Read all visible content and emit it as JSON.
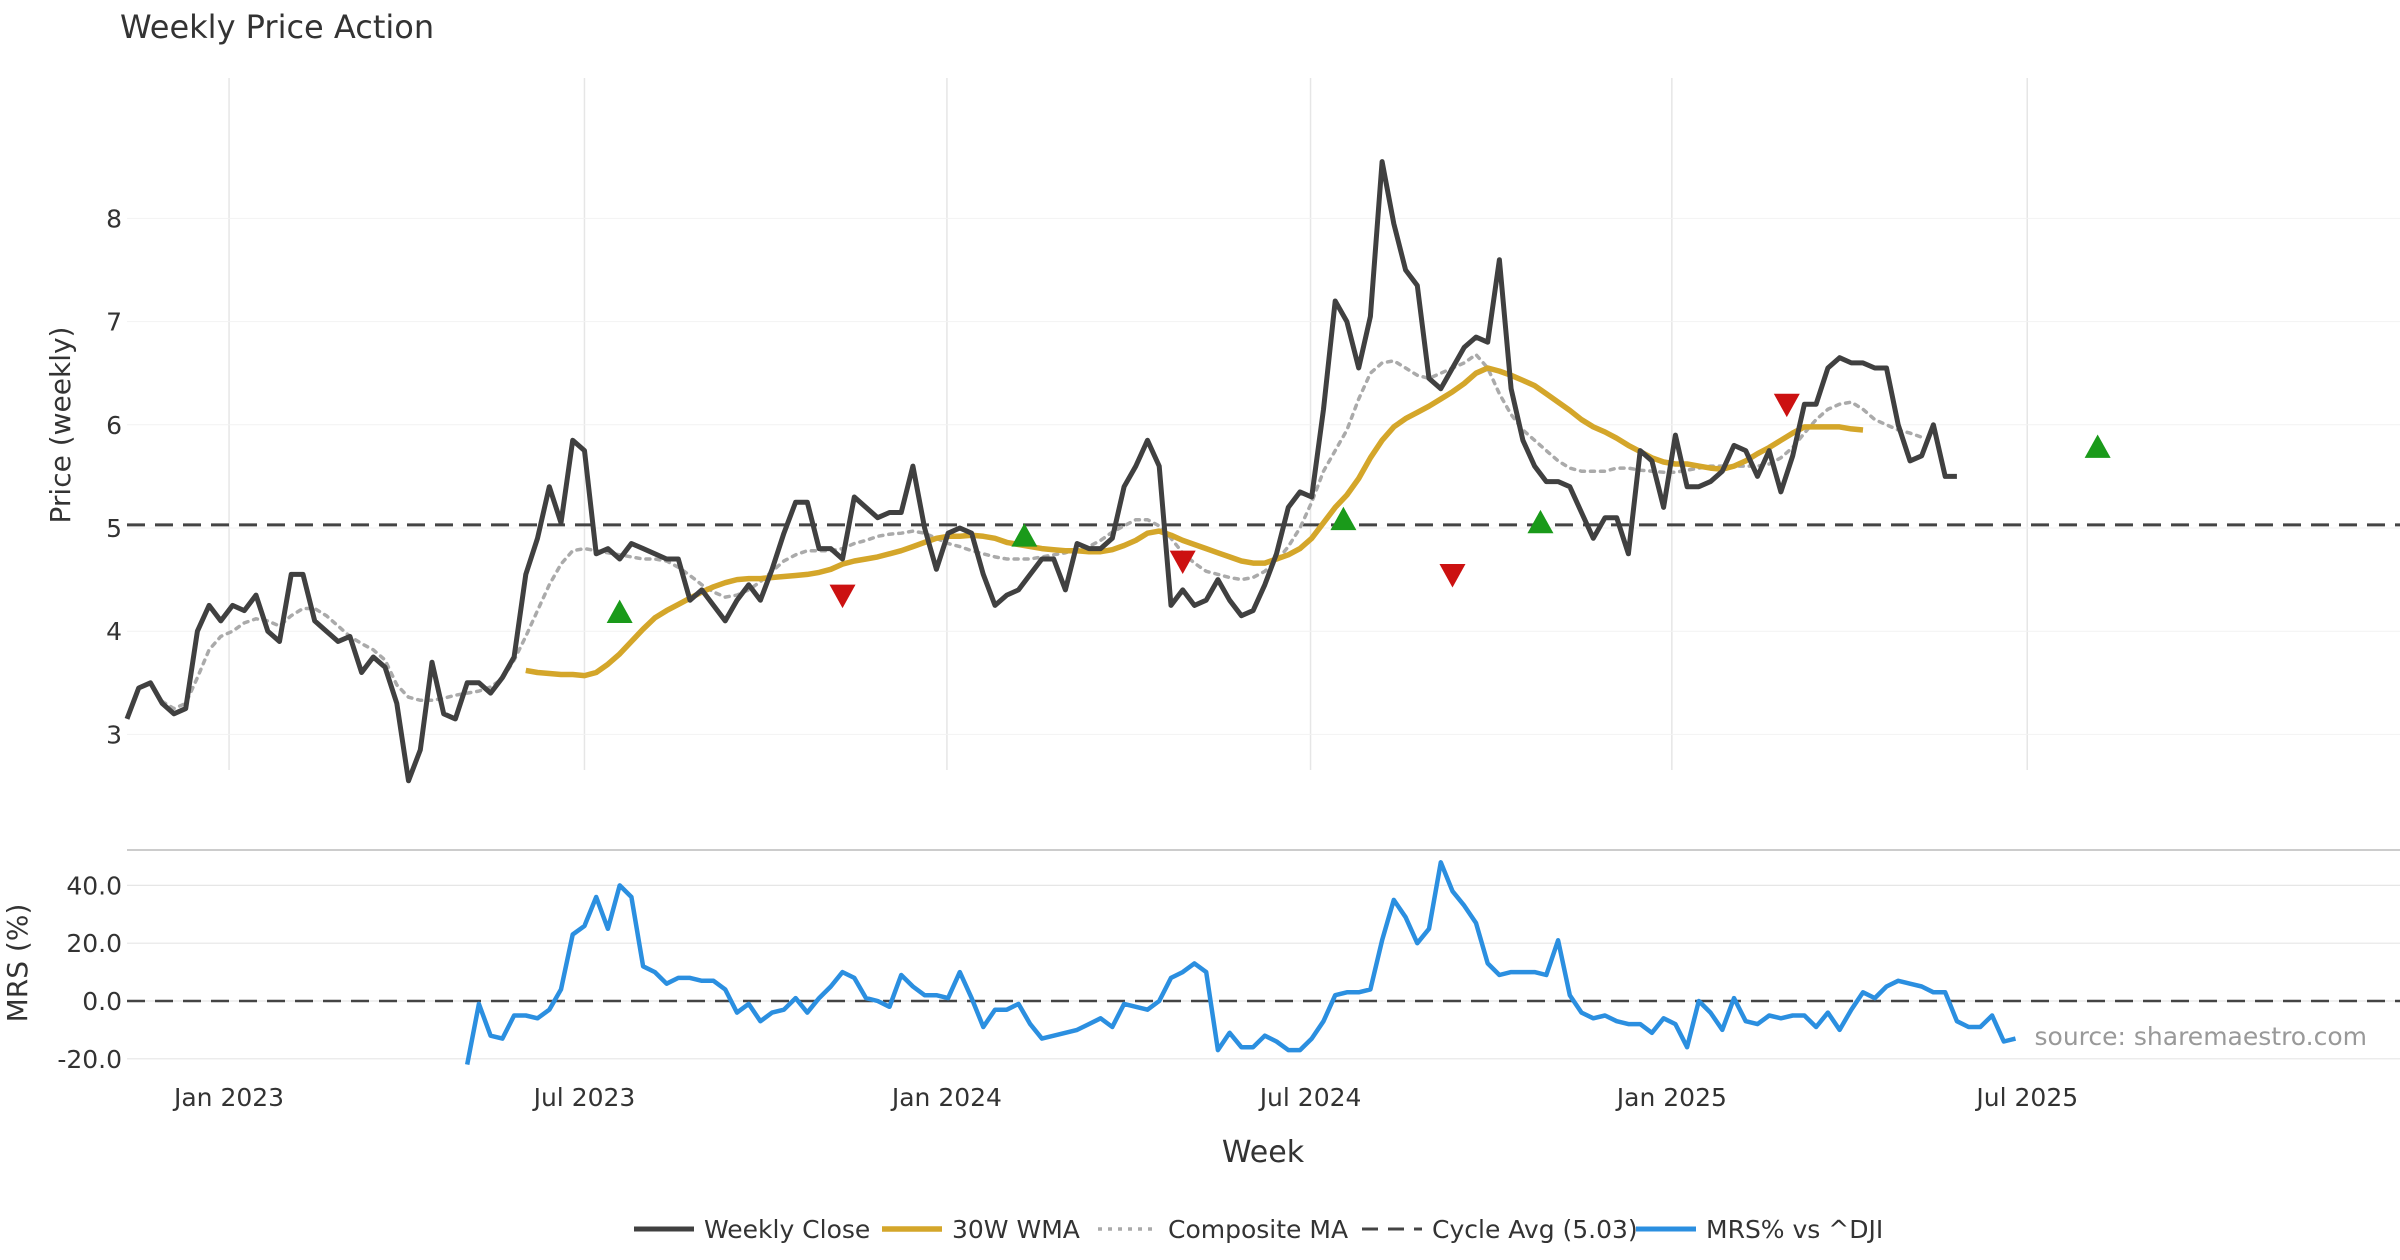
{
  "title": "Weekly Price Action",
  "source_note": "source: sharemaestro.com",
  "colors": {
    "close": "#404040",
    "wma": "#d4a62a",
    "composite": "#aaaaaa",
    "cycle": "#444444",
    "mrs": "#2b8fe0",
    "buy": "#1a9a1a",
    "sell": "#cc1111",
    "grid": "#e6e6e6"
  },
  "legend": [
    {
      "label": "Weekly Close",
      "style": "close"
    },
    {
      "label": "30W WMA",
      "style": "wma"
    },
    {
      "label": "Composite MA",
      "style": "composite"
    },
    {
      "label": "Cycle Avg (5.03)",
      "style": "cycle"
    },
    {
      "label": "MRS% vs ^DJI",
      "style": "mrs"
    }
  ],
  "chart_data": [
    {
      "type": "line",
      "panel": "price",
      "title": "Weekly Price Action",
      "xlabel": "Week",
      "ylabel": "Price (weekly)",
      "ylim": [
        2.2,
        8.9
      ],
      "yticks": [
        3,
        4,
        5,
        6,
        7,
        8
      ],
      "yticklabels": [
        "3",
        "4",
        "5",
        "6",
        "7",
        "8"
      ],
      "x_range_weeks": [
        0,
        195
      ],
      "xticks_week": [
        8.7,
        39,
        69.9,
        100.9,
        131.7,
        162
      ],
      "xticklabels": [
        "Jan 2023",
        "Jul 2023",
        "Jan 2024",
        "Jul 2024",
        "Jan 2025",
        "Jul 2025"
      ],
      "cycle_avg": 5.03,
      "series": [
        {
          "name": "Weekly Close",
          "start_week": 0,
          "values": [
            3.15,
            3.45,
            3.5,
            3.3,
            3.2,
            3.25,
            4.0,
            4.25,
            4.1,
            4.25,
            4.2,
            4.35,
            4.0,
            3.9,
            4.55,
            4.55,
            4.1,
            4.0,
            3.9,
            3.95,
            3.6,
            3.75,
            3.65,
            3.3,
            2.55,
            2.85,
            3.7,
            3.2,
            3.15,
            3.5,
            3.5,
            3.4,
            3.55,
            3.75,
            4.55,
            4.9,
            5.4,
            5.05,
            5.85,
            5.75,
            4.75,
            4.8,
            4.7,
            4.85,
            4.8,
            4.75,
            4.7,
            4.7,
            4.3,
            4.4,
            4.25,
            4.1,
            4.3,
            4.45,
            4.3,
            4.6,
            4.95,
            5.25,
            5.25,
            4.8,
            4.8,
            4.7,
            5.3,
            5.2,
            5.1,
            5.15,
            5.15,
            5.6,
            5.0,
            4.6,
            4.95,
            5.0,
            4.95,
            4.55,
            4.25,
            4.35,
            4.4,
            4.55,
            4.7,
            4.7,
            4.4,
            4.85,
            4.8,
            4.8,
            4.9,
            5.4,
            5.6,
            5.85,
            5.6,
            4.25,
            4.4,
            4.25,
            4.3,
            4.5,
            4.3,
            4.15,
            4.2,
            4.45,
            4.75,
            5.2,
            5.35,
            5.3,
            6.15,
            7.2,
            7.0,
            6.55,
            7.05,
            8.55,
            7.95,
            7.5,
            7.35,
            6.45,
            6.35,
            6.55,
            6.75,
            6.85,
            6.8,
            7.6,
            6.35,
            5.85,
            5.6,
            5.45,
            5.45,
            5.4,
            5.15,
            4.9,
            5.1,
            5.1,
            4.75,
            5.75,
            5.65,
            5.2,
            5.9,
            5.4,
            5.4,
            5.45,
            5.55,
            5.8,
            5.75,
            5.5,
            5.75,
            5.35,
            5.7,
            6.2,
            6.2,
            6.55,
            6.65,
            6.6,
            6.6,
            6.55,
            6.55,
            6.0,
            5.65,
            5.7,
            6.0,
            5.5,
            5.5
          ]
        },
        {
          "name": "30W WMA",
          "start_week": 34,
          "values": [
            3.62,
            3.6,
            3.59,
            3.58,
            3.58,
            3.57,
            3.6,
            3.68,
            3.78,
            3.9,
            4.02,
            4.13,
            4.2,
            4.26,
            4.32,
            4.38,
            4.43,
            4.47,
            4.5,
            4.51,
            4.51,
            4.52,
            4.53,
            4.54,
            4.55,
            4.57,
            4.6,
            4.65,
            4.68,
            4.7,
            4.72,
            4.75,
            4.78,
            4.82,
            4.86,
            4.9,
            4.92,
            4.92,
            4.93,
            4.92,
            4.9,
            4.86,
            4.84,
            4.82,
            4.8,
            4.79,
            4.78,
            4.78,
            4.77,
            4.77,
            4.79,
            4.83,
            4.88,
            4.95,
            4.97,
            4.93,
            4.88,
            4.84,
            4.8,
            4.76,
            4.72,
            4.68,
            4.66,
            4.66,
            4.7,
            4.74,
            4.8,
            4.9,
            5.05,
            5.2,
            5.32,
            5.48,
            5.68,
            5.85,
            5.98,
            6.06,
            6.12,
            6.18,
            6.25,
            6.32,
            6.4,
            6.5,
            6.55,
            6.52,
            6.48,
            6.43,
            6.38,
            6.3,
            6.22,
            6.14,
            6.05,
            5.98,
            5.93,
            5.87,
            5.8,
            5.74,
            5.68,
            5.64,
            5.62,
            5.62,
            5.6,
            5.58,
            5.57,
            5.6,
            5.65,
            5.72,
            5.78,
            5.85,
            5.92,
            5.98,
            5.98,
            5.98,
            5.98,
            5.96,
            5.95
          ]
        },
        {
          "name": "Composite MA",
          "start_week": 0,
          "values": [
            null,
            null,
            null,
            3.32,
            3.25,
            3.3,
            3.55,
            3.82,
            3.95,
            4.0,
            4.08,
            4.12,
            4.1,
            4.05,
            4.15,
            4.22,
            4.22,
            4.15,
            4.05,
            3.95,
            3.88,
            3.82,
            3.72,
            3.48,
            3.36,
            3.33,
            3.33,
            3.35,
            3.38,
            3.4,
            3.42,
            3.46,
            3.54,
            3.72,
            3.95,
            4.2,
            4.45,
            4.65,
            4.78,
            4.8,
            4.78,
            4.76,
            4.74,
            4.72,
            4.7,
            4.7,
            4.68,
            4.62,
            4.54,
            4.45,
            4.38,
            4.33,
            4.35,
            4.4,
            4.48,
            4.58,
            4.68,
            4.74,
            4.78,
            4.78,
            4.78,
            4.8,
            4.85,
            4.88,
            4.92,
            4.94,
            4.95,
            4.97,
            4.95,
            4.9,
            4.85,
            4.82,
            4.78,
            4.75,
            4.72,
            4.7,
            4.7,
            4.7,
            4.72,
            4.74,
            4.76,
            4.8,
            4.82,
            4.88,
            4.96,
            5.02,
            5.08,
            5.08,
            5.02,
            4.9,
            4.76,
            4.66,
            4.58,
            4.55,
            4.52,
            4.5,
            4.52,
            4.58,
            4.68,
            4.82,
            5.0,
            5.25,
            5.55,
            5.75,
            5.95,
            6.25,
            6.5,
            6.6,
            6.62,
            6.55,
            6.48,
            6.45,
            6.5,
            6.55,
            6.6,
            6.68,
            6.55,
            6.3,
            6.1,
            5.95,
            5.85,
            5.75,
            5.65,
            5.58,
            5.55,
            5.55,
            5.55,
            5.58,
            5.58,
            5.56,
            5.55,
            5.54,
            5.54,
            5.56,
            5.58,
            5.6,
            5.6,
            5.6,
            5.6,
            5.6,
            5.62,
            5.68,
            5.78,
            5.92,
            6.05,
            6.15,
            6.2,
            6.22,
            6.15,
            6.05,
            6.0,
            5.95,
            5.92,
            5.88
          ]
        }
      ],
      "markers": [
        {
          "week": 42,
          "value": 4.18,
          "type": "buy"
        },
        {
          "week": 61,
          "value": 4.35,
          "type": "sell"
        },
        {
          "week": 76.5,
          "value": 4.92,
          "type": "buy"
        },
        {
          "week": 90,
          "value": 4.68,
          "type": "sell"
        },
        {
          "week": 103.7,
          "value": 5.08,
          "type": "buy"
        },
        {
          "week": 113,
          "value": 4.55,
          "type": "sell"
        },
        {
          "week": 120.5,
          "value": 5.05,
          "type": "buy"
        },
        {
          "week": 141.5,
          "value": 6.2,
          "type": "sell"
        },
        {
          "week": 168,
          "value": 5.78,
          "type": "buy"
        }
      ]
    },
    {
      "type": "line",
      "panel": "mrs",
      "ylabel": "MRS (%)",
      "ylim": [
        -22,
        52
      ],
      "yticks": [
        40,
        20,
        0,
        -20
      ],
      "yticklabels": [
        "40.0",
        "20.0",
        "0.0",
        "-20.0"
      ],
      "zero_line": 0,
      "series": [
        {
          "name": "MRS% vs ^DJI",
          "start_week": 29,
          "values": [
            -22,
            -1,
            -12,
            -13,
            -5,
            -5,
            -6,
            -3,
            4,
            23,
            26,
            36,
            25,
            40,
            36,
            12,
            10,
            6,
            8,
            8,
            7,
            7,
            4,
            -4,
            -1,
            -7,
            -4,
            -3,
            1,
            -4,
            1,
            5,
            10,
            8,
            1,
            0,
            -2,
            9,
            5,
            2,
            2,
            1,
            10,
            1,
            -9,
            -3,
            -3,
            -1,
            -8,
            -13,
            -12,
            -11,
            -10,
            -8,
            -6,
            -9,
            -1,
            -2,
            -3,
            0,
            8,
            10,
            13,
            10,
            -17,
            -11,
            -16,
            -16,
            -12,
            -14,
            -17,
            -17,
            -13,
            -7,
            2,
            3,
            3,
            4,
            21,
            35,
            29,
            20,
            25,
            48,
            38,
            33,
            27,
            13,
            9,
            10,
            10,
            10,
            9,
            21,
            2,
            -4,
            -6,
            -5,
            -7,
            -8,
            -8,
            -11,
            -6,
            -8,
            -16,
            0,
            -4,
            -10,
            1,
            -7,
            -8,
            -5,
            -6,
            -5,
            -5,
            -9,
            -4,
            -10,
            -3,
            3,
            1,
            5,
            7,
            6,
            5,
            3,
            3,
            -7,
            -9,
            -9,
            -5,
            -14,
            -13
          ]
        }
      ]
    }
  ]
}
